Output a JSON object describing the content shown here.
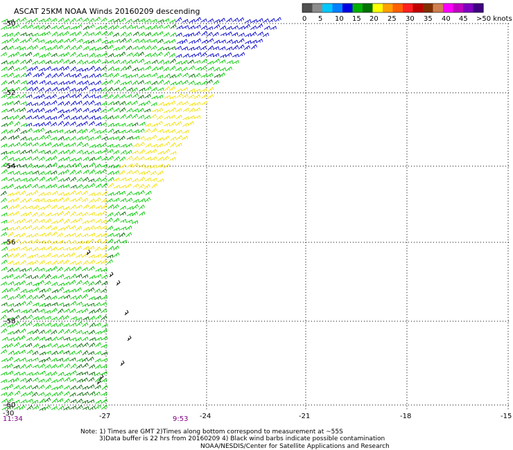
{
  "title": "ASCAT 25KM NOAA Winds 20160209 descending",
  "legend": {
    "colors": [
      "#505050",
      "#8c8c8c",
      "#00c8ff",
      "#0080ff",
      "#0000e0",
      "#00b000",
      "#007000",
      "#ffff00",
      "#ffa000",
      "#ff6000",
      "#ff2020",
      "#c00000",
      "#803000",
      "#d08050",
      "#ff00ff",
      "#c000c0",
      "#8000c0",
      "#400080"
    ],
    "labels": [
      "0",
      "5",
      "10",
      "15",
      "20",
      "25",
      "30",
      "35",
      "40",
      "45",
      ">50 knots"
    ]
  },
  "lat_labels": [
    "-50",
    "-52",
    "-54",
    "-56",
    "-58",
    "-60"
  ],
  "lon_labels": [
    "-30",
    "-27",
    "-24",
    "-21",
    "-18",
    "-15"
  ],
  "times": [
    "11:34",
    "9:53"
  ],
  "notes": [
    "Note: 1) Times are GMT 2)Times along bottom correspond to measurement at ~55S",
    "3)Data buffer is 22 hrs from 20160209 4) Black wind barbs indicate possible contamination",
    "NOAA/NESDIS/Center for Satellite Applications and Research"
  ],
  "wind_colors": {
    "blue": "#0000c8",
    "green": "#00c800",
    "dark_green": "#006400",
    "yellow": "#f0e000",
    "black": "#000000"
  }
}
